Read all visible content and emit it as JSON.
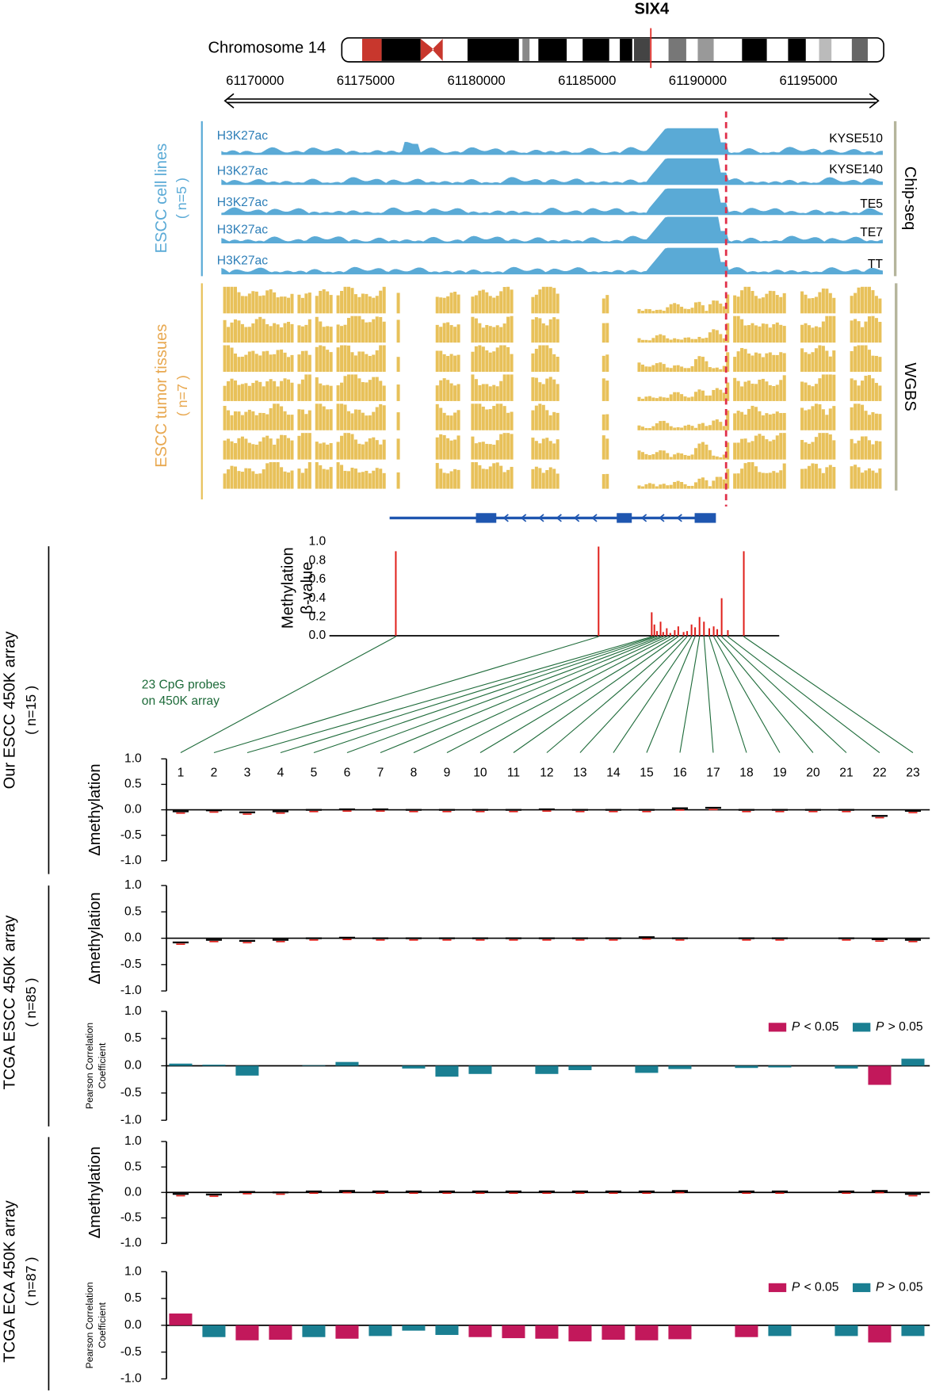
{
  "header": {
    "gene": "SIX4",
    "chromosome": "Chromosome 14",
    "coordinates": [
      61170000,
      61175000,
      61180000,
      61185000,
      61190000,
      61195000
    ]
  },
  "chipseq": {
    "group": "ESCC cell lines",
    "n": "( n=5 )",
    "assay": "Chip-seq",
    "tracks": [
      {
        "mark": "H3K27ac",
        "cell": "KYSE510"
      },
      {
        "mark": "H3K27ac",
        "cell": "KYSE140"
      },
      {
        "mark": "H3K27ac",
        "cell": "TE5"
      },
      {
        "mark": "H3K27ac",
        "cell": "TE7"
      },
      {
        "mark": "H3K27ac",
        "cell": "TT"
      }
    ]
  },
  "wgbs": {
    "group": "ESCC tumor tissues",
    "n": "( n=7 )",
    "assay": "WGBS"
  },
  "beta": {
    "type": "bar",
    "ylabel": [
      "Methylation",
      "β-value"
    ],
    "ylim": [
      0,
      1
    ],
    "yticks": [
      {
        "value": 0,
        "label": "0.0"
      },
      {
        "value": 0.2,
        "label": "0.2"
      },
      {
        "value": 0.4,
        "label": "0.4"
      },
      {
        "value": 0.6,
        "label": "0.6"
      },
      {
        "value": 0.8,
        "label": "0.8"
      },
      {
        "value": 1,
        "label": "1.0"
      }
    ],
    "values": [
      0.9,
      0.95,
      0.25,
      0.12,
      0.05,
      0.15,
      0.04,
      0.08,
      0.03,
      0.06,
      0.1,
      0.04,
      0.05,
      0.12,
      0.09,
      0.2,
      0.15,
      0.08,
      0.1,
      0.07,
      0.4,
      0.06,
      0.9
    ],
    "color": "#e0201b",
    "note": [
      "23 CpG probes",
      "on 450K array"
    ]
  },
  "probes": [
    "1",
    "2",
    "3",
    "4",
    "5",
    "6",
    "7",
    "8",
    "9",
    "10",
    "11",
    "12",
    "13",
    "14",
    "15",
    "16",
    "17",
    "18",
    "19",
    "20",
    "21",
    "22",
    "23"
  ],
  "groups": [
    {
      "label": "Our ESCC 450K array",
      "n": "( n=15 )"
    },
    {
      "label": "TCGA ESCC 450K array",
      "n": "( n=85 )"
    },
    {
      "label": "TCGA ECA 450K array",
      "n": "( n=87 )"
    }
  ],
  "panels": [
    {
      "type": "delta",
      "ylabel": "Δmethylation",
      "ylim": [
        -1,
        1
      ],
      "yticks": [
        {
          "value": -1,
          "label": "-1.0"
        },
        -0.5,
        {
          "value": 0,
          "label": "0.0"
        },
        0.5,
        {
          "value": 1,
          "label": "1.0"
        }
      ],
      "values": [
        -0.03,
        -0.01,
        -0.05,
        -0.03,
        0,
        0.01,
        0.01,
        0,
        0,
        0,
        0,
        0.01,
        0,
        0,
        0,
        0.03,
        0.04,
        0,
        0,
        0,
        0,
        -0.12,
        -0.02
      ],
      "color": "#e0201b"
    },
    {
      "type": "delta",
      "ylabel": "Δmethylation",
      "ylim": [
        -1,
        1
      ],
      "yticks": [
        {
          "value": -1,
          "label": "-1.0"
        },
        -0.5,
        {
          "value": 0,
          "label": "0.0"
        },
        0.5,
        {
          "value": 1,
          "label": "1.0"
        }
      ],
      "values": [
        -0.08,
        -0.03,
        -0.05,
        -0.03,
        0,
        0.01,
        0,
        0,
        0,
        0,
        0,
        0,
        0,
        0,
        0.02,
        0,
        null,
        0,
        0,
        null,
        0,
        -0.02,
        -0.03
      ],
      "color": "#e0201b"
    },
    {
      "type": "pearson",
      "ylabel": [
        "Pearson Correlation",
        "Coefficient"
      ],
      "ylim": [
        -1,
        1
      ],
      "yticks": [
        {
          "value": -1,
          "label": "-1.0"
        },
        -0.5,
        {
          "value": 0,
          "label": "0.0"
        },
        0.5,
        {
          "value": 1,
          "label": "1.0"
        }
      ],
      "values": [
        0.04,
        0.02,
        -0.18,
        null,
        0.01,
        0.07,
        null,
        -0.05,
        -0.2,
        -0.15,
        null,
        -0.15,
        -0.08,
        null,
        -0.13,
        -0.06,
        null,
        -0.04,
        -0.03,
        null,
        -0.05,
        -0.35,
        0.13
      ],
      "colors": [
        "#1a7f92",
        "#1a7f92",
        "#1a7f92",
        null,
        "#1a7f92",
        "#1a7f92",
        null,
        "#1a7f92",
        "#1a7f92",
        "#1a7f92",
        null,
        "#1a7f92",
        "#1a7f92",
        null,
        "#1a7f92",
        "#1a7f92",
        null,
        "#1a7f92",
        "#1a7f92",
        null,
        "#1a7f92",
        "#c2185b",
        "#1a7f92"
      ],
      "legend": [
        {
          "symbol": "P",
          "text": "< 0.05",
          "color": "#c2185b"
        },
        {
          "symbol": "P",
          "text": "> 0.05",
          "color": "#1a7f92"
        }
      ]
    },
    {
      "type": "delta",
      "ylabel": "Δmethylation",
      "ylim": [
        -1,
        1
      ],
      "yticks": [
        {
          "value": -1,
          "label": "-1.0"
        },
        -0.5,
        {
          "value": 0,
          "label": "0.0"
        },
        0.5,
        {
          "value": 1,
          "label": "1.0"
        }
      ],
      "values": [
        -0.03,
        -0.04,
        0.01,
        0,
        0.02,
        0.03,
        0.02,
        0.02,
        0.02,
        0.02,
        0.02,
        0.02,
        0.02,
        0.02,
        0.02,
        0.03,
        null,
        0.02,
        0.02,
        null,
        0.02,
        0.03,
        -0.03
      ],
      "color": "#e0201b"
    },
    {
      "type": "pearson",
      "ylabel": [
        "Pearson Correlation",
        "Coefficient"
      ],
      "ylim": [
        -1,
        1
      ],
      "yticks": [
        {
          "value": -1,
          "label": "-1.0"
        },
        -0.5,
        {
          "value": 0,
          "label": "0.0"
        },
        0.5,
        {
          "value": 1,
          "label": "1.0"
        }
      ],
      "values": [
        0.22,
        -0.22,
        -0.28,
        -0.27,
        -0.22,
        -0.25,
        -0.2,
        -0.1,
        -0.18,
        -0.22,
        -0.24,
        -0.25,
        -0.3,
        -0.27,
        -0.28,
        -0.26,
        null,
        -0.22,
        -0.2,
        null,
        -0.2,
        -0.32,
        -0.2
      ],
      "colors": [
        "#c2185b",
        "#1a7f92",
        "#c2185b",
        "#c2185b",
        "#1a7f92",
        "#c2185b",
        "#1a7f92",
        "#1a7f92",
        "#1a7f92",
        "#c2185b",
        "#c2185b",
        "#c2185b",
        "#c2185b",
        "#c2185b",
        "#c2185b",
        "#c2185b",
        null,
        "#c2185b",
        "#1a7f92",
        null,
        "#1a7f92",
        "#c2185b",
        "#1a7f92"
      ],
      "legend": [
        {
          "symbol": "P",
          "text": "< 0.05",
          "color": "#c2185b"
        },
        {
          "symbol": "P",
          "text": "> 0.05",
          "color": "#1a7f92"
        }
      ]
    }
  ]
}
